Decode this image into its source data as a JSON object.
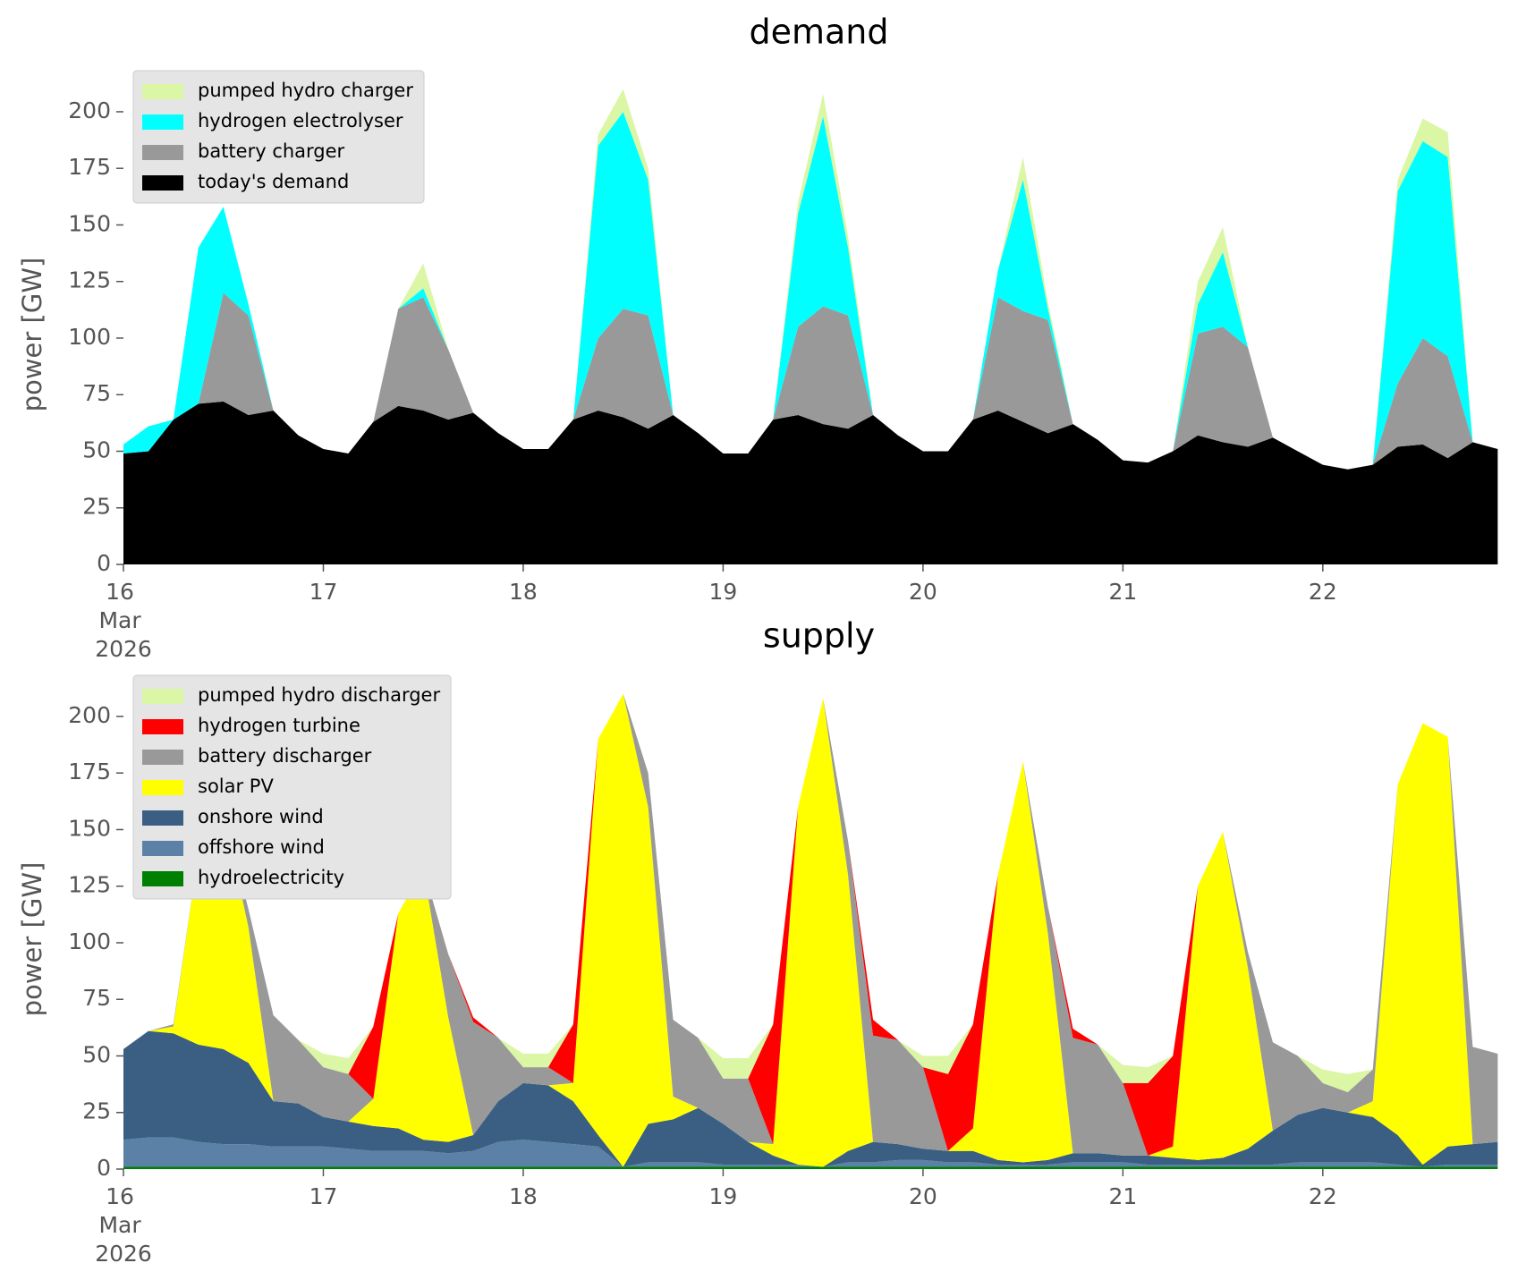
{
  "chart_data": [
    {
      "type": "stacked-area",
      "title": "demand",
      "ylabel": "power [GW]",
      "x": [
        "2026-03-16 00:00",
        "2026-03-16 03:00",
        "2026-03-16 06:00",
        "2026-03-16 09:00",
        "2026-03-16 12:00",
        "2026-03-16 15:00",
        "2026-03-16 18:00",
        "2026-03-16 21:00",
        "2026-03-17 00:00",
        "2026-03-17 03:00",
        "2026-03-17 06:00",
        "2026-03-17 09:00",
        "2026-03-17 12:00",
        "2026-03-17 15:00",
        "2026-03-17 18:00",
        "2026-03-17 21:00",
        "2026-03-18 00:00",
        "2026-03-18 03:00",
        "2026-03-18 06:00",
        "2026-03-18 09:00",
        "2026-03-18 12:00",
        "2026-03-18 15:00",
        "2026-03-18 18:00",
        "2026-03-18 21:00",
        "2026-03-19 00:00",
        "2026-03-19 03:00",
        "2026-03-19 06:00",
        "2026-03-19 09:00",
        "2026-03-19 12:00",
        "2026-03-19 15:00",
        "2026-03-19 18:00",
        "2026-03-19 21:00",
        "2026-03-20 00:00",
        "2026-03-20 03:00",
        "2026-03-20 06:00",
        "2026-03-20 09:00",
        "2026-03-20 12:00",
        "2026-03-20 15:00",
        "2026-03-20 18:00",
        "2026-03-20 21:00",
        "2026-03-21 00:00",
        "2026-03-21 03:00",
        "2026-03-21 06:00",
        "2026-03-21 09:00",
        "2026-03-21 12:00",
        "2026-03-21 15:00",
        "2026-03-21 18:00",
        "2026-03-21 21:00",
        "2026-03-22 00:00",
        "2026-03-22 03:00",
        "2026-03-22 06:00",
        "2026-03-22 09:00",
        "2026-03-22 12:00",
        "2026-03-22 15:00",
        "2026-03-22 18:00",
        "2026-03-22 21:00"
      ],
      "xlim": [
        "2026-03-16 00:00",
        "2026-03-22 23:00"
      ],
      "xticks": [
        {
          "value": "2026-03-16 00:00",
          "label": "16\nMar\n2026"
        },
        {
          "value": "2026-03-17 00:00",
          "label": "17"
        },
        {
          "value": "2026-03-18 00:00",
          "label": "18"
        },
        {
          "value": "2026-03-19 00:00",
          "label": "19"
        },
        {
          "value": "2026-03-20 00:00",
          "label": "20"
        },
        {
          "value": "2026-03-21 00:00",
          "label": "21"
        },
        {
          "value": "2026-03-22 00:00",
          "label": "22"
        }
      ],
      "ylim": [
        0,
        215
      ],
      "yticks": [
        0,
        25,
        50,
        75,
        100,
        125,
        150,
        175,
        200
      ],
      "legend": "upper left",
      "series": [
        {
          "name": "pumped hydro charger",
          "color": "#dbf6a5",
          "values": [
            0,
            0,
            0,
            0,
            0,
            0,
            0,
            0,
            0,
            0,
            0,
            0,
            11,
            0,
            0,
            0,
            0,
            0,
            0,
            5,
            10,
            5,
            0,
            0,
            0,
            0,
            0,
            5,
            10,
            5,
            0,
            0,
            0,
            0,
            0,
            0,
            10,
            3,
            0,
            0,
            0,
            0,
            0,
            10,
            11,
            0,
            0,
            0,
            0,
            0,
            0,
            5,
            10,
            11,
            0,
            0
          ]
        },
        {
          "name": "hydrogen electrolyser",
          "color": "#00ffff",
          "values": [
            4,
            11,
            0,
            69,
            38,
            5,
            0,
            0,
            0,
            0,
            0,
            0,
            4,
            0,
            0,
            0,
            0,
            0,
            0,
            85,
            87,
            60,
            0,
            0,
            0,
            0,
            0,
            50,
            84,
            30,
            0,
            0,
            0,
            0,
            0,
            12,
            58,
            5,
            0,
            0,
            0,
            0,
            0,
            13,
            33,
            0,
            0,
            0,
            0,
            0,
            0,
            85,
            87,
            88,
            0,
            0
          ]
        },
        {
          "name": "battery charger",
          "color": "#999999",
          "values": [
            0,
            0,
            0,
            0,
            48,
            44,
            0,
            0,
            0,
            0,
            0,
            43,
            50,
            31,
            0,
            0,
            0,
            0,
            0,
            32,
            48,
            50,
            0,
            0,
            0,
            0,
            0,
            39,
            52,
            50,
            0,
            0,
            0,
            0,
            0,
            50,
            49,
            50,
            0,
            0,
            0,
            0,
            0,
            45,
            51,
            44,
            0,
            0,
            0,
            0,
            0,
            28,
            47,
            45,
            0,
            0
          ]
        },
        {
          "name": "today's demand",
          "color": "#000000",
          "values": [
            49,
            50,
            64,
            71,
            72,
            66,
            68,
            57,
            51,
            49,
            63,
            70,
            68,
            64,
            67,
            58,
            51,
            51,
            64,
            68,
            65,
            60,
            66,
            58,
            49,
            49,
            64,
            66,
            62,
            60,
            66,
            57,
            50,
            50,
            64,
            68,
            63,
            58,
            62,
            55,
            46,
            45,
            50,
            57,
            54,
            52,
            56,
            50,
            44,
            42,
            44,
            52,
            53,
            47,
            54,
            51
          ]
        }
      ]
    },
    {
      "type": "stacked-area",
      "title": "supply",
      "ylabel": "power [GW]",
      "x": [
        "2026-03-16 00:00",
        "2026-03-16 03:00",
        "2026-03-16 06:00",
        "2026-03-16 09:00",
        "2026-03-16 12:00",
        "2026-03-16 15:00",
        "2026-03-16 18:00",
        "2026-03-16 21:00",
        "2026-03-17 00:00",
        "2026-03-17 03:00",
        "2026-03-17 06:00",
        "2026-03-17 09:00",
        "2026-03-17 12:00",
        "2026-03-17 15:00",
        "2026-03-17 18:00",
        "2026-03-17 21:00",
        "2026-03-18 00:00",
        "2026-03-18 03:00",
        "2026-03-18 06:00",
        "2026-03-18 09:00",
        "2026-03-18 12:00",
        "2026-03-18 15:00",
        "2026-03-18 18:00",
        "2026-03-18 21:00",
        "2026-03-19 00:00",
        "2026-03-19 03:00",
        "2026-03-19 06:00",
        "2026-03-19 09:00",
        "2026-03-19 12:00",
        "2026-03-19 15:00",
        "2026-03-19 18:00",
        "2026-03-19 21:00",
        "2026-03-20 00:00",
        "2026-03-20 03:00",
        "2026-03-20 06:00",
        "2026-03-20 09:00",
        "2026-03-20 12:00",
        "2026-03-20 15:00",
        "2026-03-20 18:00",
        "2026-03-20 21:00",
        "2026-03-21 00:00",
        "2026-03-21 03:00",
        "2026-03-21 06:00",
        "2026-03-21 09:00",
        "2026-03-21 12:00",
        "2026-03-21 15:00",
        "2026-03-21 18:00",
        "2026-03-21 21:00",
        "2026-03-22 00:00",
        "2026-03-22 03:00",
        "2026-03-22 06:00",
        "2026-03-22 09:00",
        "2026-03-22 12:00",
        "2026-03-22 15:00",
        "2026-03-22 18:00",
        "2026-03-22 21:00"
      ],
      "xlim": [
        "2026-03-16 00:00",
        "2026-03-22 23:00"
      ],
      "xticks": [
        {
          "value": "2026-03-16 00:00",
          "label": "16\nMar\n2026"
        },
        {
          "value": "2026-03-17 00:00",
          "label": "17"
        },
        {
          "value": "2026-03-18 00:00",
          "label": "18"
        },
        {
          "value": "2026-03-19 00:00",
          "label": "19"
        },
        {
          "value": "2026-03-20 00:00",
          "label": "20"
        },
        {
          "value": "2026-03-21 00:00",
          "label": "21"
        },
        {
          "value": "2026-03-22 00:00",
          "label": "22"
        }
      ],
      "ylim": [
        0,
        215
      ],
      "yticks": [
        0,
        25,
        50,
        75,
        100,
        125,
        150,
        175,
        200
      ],
      "legend": "upper left",
      "series": [
        {
          "name": "pumped hydro discharger",
          "color": "#dbf6a5",
          "values": [
            0,
            0,
            0,
            0,
            0,
            0,
            0,
            0,
            6,
            7,
            0,
            0,
            0,
            0,
            0,
            0,
            6,
            6,
            0,
            0,
            0,
            0,
            0,
            0,
            9,
            9,
            0,
            0,
            0,
            0,
            0,
            0,
            5,
            8,
            0,
            0,
            0,
            0,
            0,
            0,
            8,
            7,
            0,
            0,
            0,
            0,
            0,
            0,
            6,
            8,
            0,
            0,
            0,
            0,
            0,
            0
          ]
        },
        {
          "name": "hydrogen turbine",
          "color": "#ff0000",
          "values": [
            0,
            0,
            0,
            0,
            0,
            0,
            0,
            0,
            0,
            0,
            32,
            0,
            0,
            0,
            2,
            0,
            0,
            0,
            26,
            0,
            0,
            0,
            0,
            0,
            0,
            0,
            53,
            0,
            0,
            0,
            7,
            0,
            0,
            34,
            46,
            0,
            0,
            0,
            4,
            0,
            0,
            32,
            40,
            0,
            0,
            0,
            0,
            0,
            0,
            0,
            0,
            0,
            0,
            0,
            0,
            0
          ]
        },
        {
          "name": "battery discharger",
          "color": "#999999",
          "values": [
            0,
            0,
            1,
            0,
            0,
            8,
            38,
            28,
            22,
            21,
            0,
            0,
            0,
            28,
            50,
            28,
            7,
            8,
            0,
            0,
            0,
            15,
            34,
            31,
            20,
            28,
            0,
            0,
            0,
            15,
            47,
            46,
            36,
            0,
            0,
            0,
            0,
            12,
            51,
            48,
            32,
            0,
            0,
            0,
            0,
            7,
            39,
            26,
            11,
            9,
            14,
            0,
            0,
            0,
            43,
            39
          ]
        },
        {
          "name": "solar PV",
          "color": "#ffff00",
          "values": [
            0,
            0,
            3,
            85,
            105,
            60,
            0,
            0,
            0,
            0,
            12,
            95,
            120,
            55,
            0,
            0,
            0,
            0,
            8,
            175,
            209,
            140,
            10,
            0,
            0,
            0,
            5,
            158,
            207,
            122,
            0,
            0,
            0,
            0,
            10,
            126,
            177,
            100,
            0,
            0,
            0,
            0,
            5,
            121,
            144,
            80,
            0,
            0,
            0,
            0,
            7,
            155,
            195,
            181,
            0,
            0
          ]
        },
        {
          "name": "onshore wind",
          "color": "#3a5f82",
          "values": [
            40,
            47,
            46,
            43,
            42,
            36,
            20,
            19,
            13,
            12,
            11,
            10,
            5,
            5,
            7,
            18,
            25,
            25,
            19,
            5,
            0,
            17,
            19,
            24,
            18,
            10,
            4,
            0,
            0,
            5,
            9,
            7,
            5,
            5,
            5,
            2,
            1,
            2,
            4,
            4,
            3,
            4,
            3,
            2,
            3,
            7,
            15,
            21,
            24,
            22,
            20,
            13,
            1,
            8,
            9,
            10
          ]
        },
        {
          "name": "offshore wind",
          "color": "#5b82a6",
          "values": [
            12,
            13,
            13,
            11,
            10,
            10,
            9,
            9,
            9,
            8,
            7,
            7,
            7,
            6,
            7,
            11,
            12,
            11,
            10,
            9,
            0,
            2,
            2,
            2,
            1,
            1,
            1,
            1,
            0,
            2,
            2,
            3,
            3,
            2,
            2,
            1,
            1,
            1,
            2,
            2,
            2,
            1,
            1,
            1,
            1,
            1,
            1,
            2,
            2,
            2,
            2,
            1,
            0,
            1,
            1,
            1
          ]
        },
        {
          "name": "hydroelectricity",
          "color": "#008000",
          "values": [
            1,
            1,
            1,
            1,
            1,
            1,
            1,
            1,
            1,
            1,
            1,
            1,
            1,
            1,
            1,
            1,
            1,
            1,
            1,
            1,
            1,
            1,
            1,
            1,
            1,
            1,
            1,
            1,
            1,
            1,
            1,
            1,
            1,
            1,
            1,
            1,
            1,
            1,
            1,
            1,
            1,
            1,
            1,
            1,
            1,
            1,
            1,
            1,
            1,
            1,
            1,
            1,
            1,
            1,
            1,
            1
          ]
        }
      ]
    }
  ]
}
